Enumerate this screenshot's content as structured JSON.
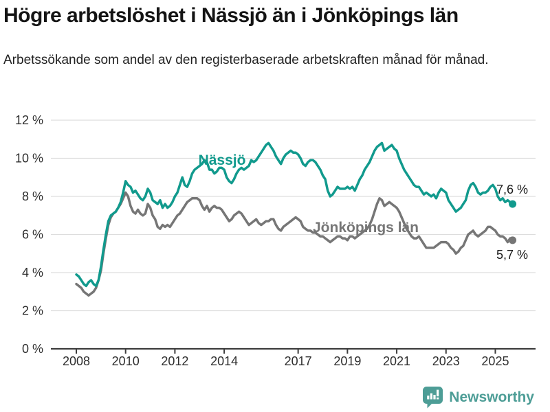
{
  "title": "Högre arbetslöshet i Nässjö än i Jönköpings län",
  "subtitle": "Arbetssökande som andel av den registerbaserade arbetskraften månad för månad.",
  "footer": {
    "brand": "Newsworthy",
    "logo_icon": "bar-chart-speech-bubble-icon"
  },
  "colors": {
    "nassjo": "#119a8d",
    "jonkoping": "#767676",
    "grid": "#dddddd",
    "axis": "#3c3c3c",
    "tick_label": "#2e2e2e",
    "annotation": "#1a1a1a",
    "brand": "#4d9d96"
  },
  "chart_data": {
    "type": "line",
    "title": "Högre arbetslöshet i Nässjö än i Jönköpings län",
    "subtitle": "Arbetssökande som andel av den registerbaserade arbetskraften månad för månad.",
    "unit": "%",
    "xlabel": "",
    "ylabel": "",
    "grid": true,
    "legend_position": "inline-labels",
    "ylim": [
      0,
      12
    ],
    "xlim": [
      2007.0,
      2026.6
    ],
    "y_ticks": [
      {
        "value": 0,
        "label": "0 %"
      },
      {
        "value": 2,
        "label": "2 %"
      },
      {
        "value": 4,
        "label": "4 %"
      },
      {
        "value": 6,
        "label": "6 %"
      },
      {
        "value": 8,
        "label": "8 %"
      },
      {
        "value": 10,
        "label": "10 %"
      },
      {
        "value": 12,
        "label": "12 %"
      }
    ],
    "x_ticks": [
      {
        "value": 2008,
        "label": "2008"
      },
      {
        "value": 2010,
        "label": "2010"
      },
      {
        "value": 2012,
        "label": "2012"
      },
      {
        "value": 2014,
        "label": "2014"
      },
      {
        "value": 2017,
        "label": "2017"
      },
      {
        "value": 2019,
        "label": "2019"
      },
      {
        "value": 2021,
        "label": "2021"
      },
      {
        "value": 2023,
        "label": "2023"
      },
      {
        "value": 2025,
        "label": "2025"
      }
    ],
    "x_start": 2008.0,
    "x_step": 0.1,
    "series": [
      {
        "name": "Nässjö",
        "color": "#119a8d",
        "end_label": "7,6 %",
        "end_value": 7.6,
        "values": [
          3.9,
          3.8,
          3.6,
          3.4,
          3.3,
          3.5,
          3.6,
          3.4,
          3.3,
          3.6,
          4.3,
          5.2,
          6.0,
          6.7,
          7.0,
          7.1,
          7.2,
          7.4,
          7.7,
          8.2,
          8.8,
          8.6,
          8.5,
          8.2,
          8.3,
          8.1,
          7.9,
          7.8,
          8.0,
          8.4,
          8.2,
          7.8,
          7.7,
          7.6,
          7.8,
          7.4,
          7.6,
          7.4,
          7.5,
          7.7,
          8.0,
          8.2,
          8.6,
          9.0,
          8.6,
          8.5,
          8.8,
          9.2,
          9.4,
          9.5,
          9.6,
          9.7,
          9.9,
          9.8,
          9.4,
          9.4,
          9.2,
          9.3,
          9.5,
          9.5,
          9.4,
          9.0,
          8.8,
          8.7,
          8.9,
          9.2,
          9.4,
          9.5,
          9.4,
          9.5,
          9.6,
          9.9,
          9.8,
          9.9,
          10.1,
          10.3,
          10.5,
          10.7,
          10.8,
          10.6,
          10.4,
          10.1,
          9.9,
          9.7,
          10.0,
          10.2,
          10.3,
          10.4,
          10.3,
          10.3,
          10.2,
          10.0,
          9.7,
          9.6,
          9.8,
          9.9,
          9.9,
          9.8,
          9.6,
          9.4,
          9.1,
          8.9,
          8.3,
          8.0,
          8.1,
          8.3,
          8.5,
          8.4,
          8.4,
          8.4,
          8.5,
          8.4,
          8.5,
          8.3,
          8.6,
          8.9,
          9.1,
          9.4,
          9.6,
          9.8,
          10.1,
          10.4,
          10.6,
          10.7,
          10.8,
          10.4,
          10.5,
          10.6,
          10.7,
          10.5,
          10.4,
          10.0,
          9.7,
          9.4,
          9.2,
          9.0,
          8.8,
          8.6,
          8.5,
          8.5,
          8.3,
          8.1,
          8.2,
          8.1,
          8.0,
          8.1,
          7.9,
          8.2,
          8.4,
          8.3,
          8.2,
          7.8,
          7.6,
          7.4,
          7.2,
          7.3,
          7.4,
          7.6,
          7.8,
          8.3,
          8.6,
          8.7,
          8.5,
          8.2,
          8.1,
          8.2,
          8.2,
          8.3,
          8.5,
          8.6,
          8.4,
          8.0,
          7.8,
          7.9,
          7.7,
          7.8,
          7.7,
          7.6
        ]
      },
      {
        "name": "Jönköpings län",
        "color": "#767676",
        "end_label": "5,7 %",
        "end_value": 5.7,
        "values": [
          3.4,
          3.3,
          3.2,
          3.0,
          2.9,
          2.8,
          2.9,
          3.0,
          3.2,
          3.6,
          4.1,
          5.0,
          5.8,
          6.5,
          6.9,
          7.1,
          7.2,
          7.4,
          7.6,
          7.9,
          8.2,
          8.0,
          7.5,
          7.2,
          7.1,
          7.3,
          7.1,
          7.0,
          7.1,
          7.6,
          7.4,
          7.0,
          6.8,
          6.4,
          6.3,
          6.5,
          6.4,
          6.5,
          6.4,
          6.6,
          6.8,
          7.0,
          7.1,
          7.3,
          7.5,
          7.7,
          7.8,
          7.9,
          7.9,
          7.9,
          7.8,
          7.5,
          7.3,
          7.5,
          7.2,
          7.4,
          7.5,
          7.4,
          7.4,
          7.3,
          7.1,
          6.9,
          6.7,
          6.8,
          7.0,
          7.1,
          7.2,
          7.1,
          6.9,
          6.7,
          6.5,
          6.6,
          6.7,
          6.8,
          6.6,
          6.5,
          6.6,
          6.7,
          6.7,
          6.8,
          6.8,
          6.5,
          6.3,
          6.2,
          6.4,
          6.5,
          6.6,
          6.7,
          6.8,
          6.9,
          6.8,
          6.7,
          6.4,
          6.3,
          6.2,
          6.2,
          6.1,
          6.1,
          6.0,
          5.9,
          5.9,
          5.8,
          5.7,
          5.6,
          5.7,
          5.8,
          5.9,
          5.9,
          5.8,
          5.8,
          5.7,
          5.9,
          5.9,
          5.8,
          5.9,
          6.0,
          6.1,
          6.2,
          6.3,
          6.5,
          6.8,
          7.2,
          7.6,
          7.9,
          7.8,
          7.5,
          7.6,
          7.7,
          7.6,
          7.5,
          7.4,
          7.2,
          6.9,
          6.6,
          6.3,
          6.1,
          5.9,
          5.8,
          5.8,
          5.9,
          5.7,
          5.5,
          5.3,
          5.3,
          5.3,
          5.3,
          5.4,
          5.5,
          5.6,
          5.6,
          5.6,
          5.5,
          5.3,
          5.2,
          5.0,
          5.1,
          5.3,
          5.4,
          5.7,
          6.0,
          6.1,
          6.2,
          6.0,
          5.9,
          6.0,
          6.1,
          6.2,
          6.4,
          6.4,
          6.3,
          6.2,
          6.0,
          5.9,
          5.9,
          5.8,
          5.6,
          5.8,
          5.7
        ]
      }
    ]
  }
}
